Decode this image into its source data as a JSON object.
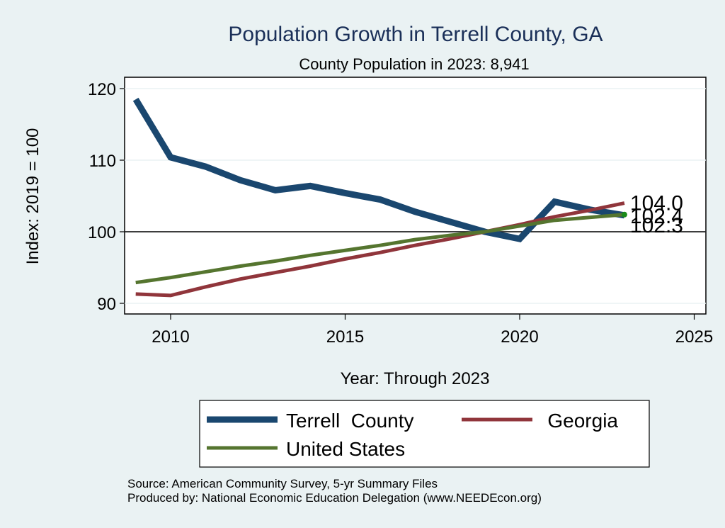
{
  "chart_data": {
    "type": "line",
    "title": "Population Growth in Terrell County, GA",
    "subtitle": "County Population in 2023: 8,941",
    "xlabel": "Year: Through 2023",
    "ylabel": "Index: 2019 = 100",
    "xlim": [
      2009,
      2025.4
    ],
    "ylim": [
      88.5,
      121.5
    ],
    "xticks": [
      2010,
      2015,
      2020,
      2025
    ],
    "yticks": [
      90,
      100,
      110,
      120
    ],
    "reference_line": 100,
    "grid": true,
    "x": [
      2009,
      2010,
      2011,
      2012,
      2013,
      2014,
      2015,
      2016,
      2017,
      2018,
      2019,
      2020,
      2021,
      2022,
      2023
    ],
    "series": [
      {
        "name": "Terrell  County",
        "color": "#1a476f",
        "values": [
          118.5,
          110.4,
          109.1,
          107.2,
          105.8,
          106.4,
          105.4,
          104.5,
          102.8,
          101.4,
          100.0,
          99.0,
          104.2,
          103.1,
          102.3
        ],
        "end_label": "102.3"
      },
      {
        "name": "Georgia",
        "color": "#90353b",
        "values": [
          91.3,
          91.1,
          92.3,
          93.4,
          94.3,
          95.2,
          96.2,
          97.1,
          98.1,
          99.0,
          100.0,
          101.0,
          102.1,
          103.0,
          104.0
        ],
        "end_label": "104.0"
      },
      {
        "name": "United States",
        "color": "#55752f",
        "values": [
          92.9,
          93.6,
          94.4,
          95.2,
          95.9,
          96.7,
          97.4,
          98.1,
          98.9,
          99.5,
          100.0,
          100.8,
          101.6,
          102.0,
          102.4
        ],
        "end_label": "102.4"
      }
    ],
    "legend_position": "bottom",
    "notes": [
      "Source: American Community Survey, 5-yr Summary Files",
      "Produced by: National Economic Education Delegation (www.NEEDEcon.org)"
    ]
  }
}
